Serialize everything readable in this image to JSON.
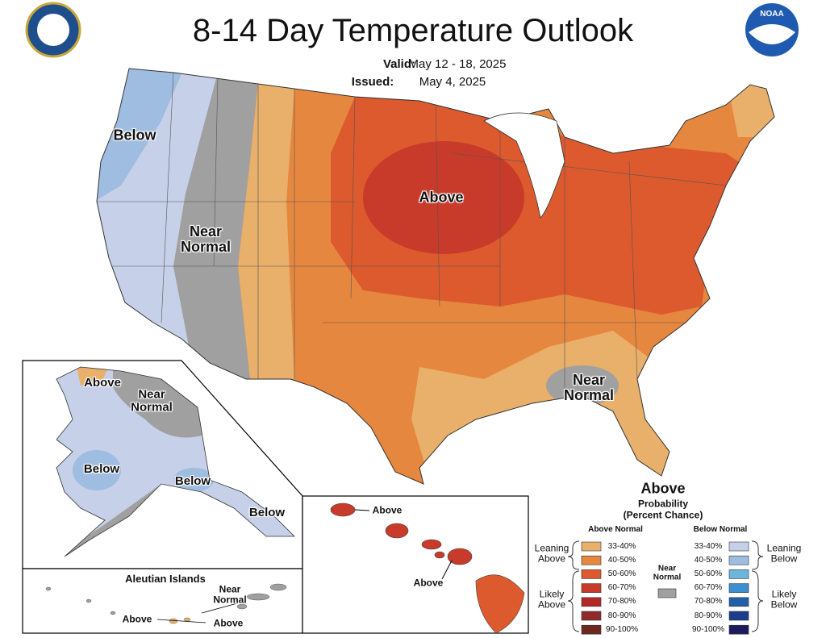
{
  "header": {
    "title": "8-14 Day Temperature Outlook",
    "valid_label": "Valid:",
    "valid_dates": "May 12 - 18, 2025",
    "issued_label": "Issued:",
    "issued_date": "May 4, 2025",
    "logo_text": "NOAA"
  },
  "conus_labels": [
    "Below",
    "Near Normal",
    "Above",
    "Near Normal"
  ],
  "alaska_labels": [
    "Above",
    "Near Normal",
    "Below",
    "Below",
    "Below"
  ],
  "aleutian": {
    "title": "Aleutian Islands",
    "labels": [
      "Near Normal",
      "Above",
      "Above"
    ]
  },
  "hawaii_labels": [
    "Above",
    "Above"
  ],
  "legend": {
    "category": "Above",
    "title": "Probability",
    "subtitle": "(Percent Chance)",
    "above_header": "Above Normal",
    "below_header": "Below Normal",
    "near_normal": "Near Normal",
    "near_color": "#a0a0a0",
    "above": [
      {
        "label": "33-40%",
        "color": "#e8b06a"
      },
      {
        "label": "40-50%",
        "color": "#e6873f"
      },
      {
        "label": "50-60%",
        "color": "#dc5a2e"
      },
      {
        "label": "60-70%",
        "color": "#c83a2a"
      },
      {
        "label": "70-80%",
        "color": "#b22a28"
      },
      {
        "label": "80-90%",
        "color": "#8f2a2a"
      },
      {
        "label": "90-100%",
        "color": "#6a2a1e"
      }
    ],
    "below": [
      {
        "label": "33-40%",
        "color": "#c6d0e8"
      },
      {
        "label": "40-50%",
        "color": "#9fbde0"
      },
      {
        "label": "50-60%",
        "color": "#6cb6de"
      },
      {
        "label": "60-70%",
        "color": "#3c8fd0"
      },
      {
        "label": "70-80%",
        "color": "#2060a8"
      },
      {
        "label": "80-90%",
        "color": "#1c3c8c"
      },
      {
        "label": "90-100%",
        "color": "#1c1c5c"
      }
    ],
    "groups": {
      "leaning_above": "Leaning Above",
      "likely_above": "Likely Above",
      "leaning_below": "Leaning Below",
      "likely_below": "Likely Below"
    }
  }
}
